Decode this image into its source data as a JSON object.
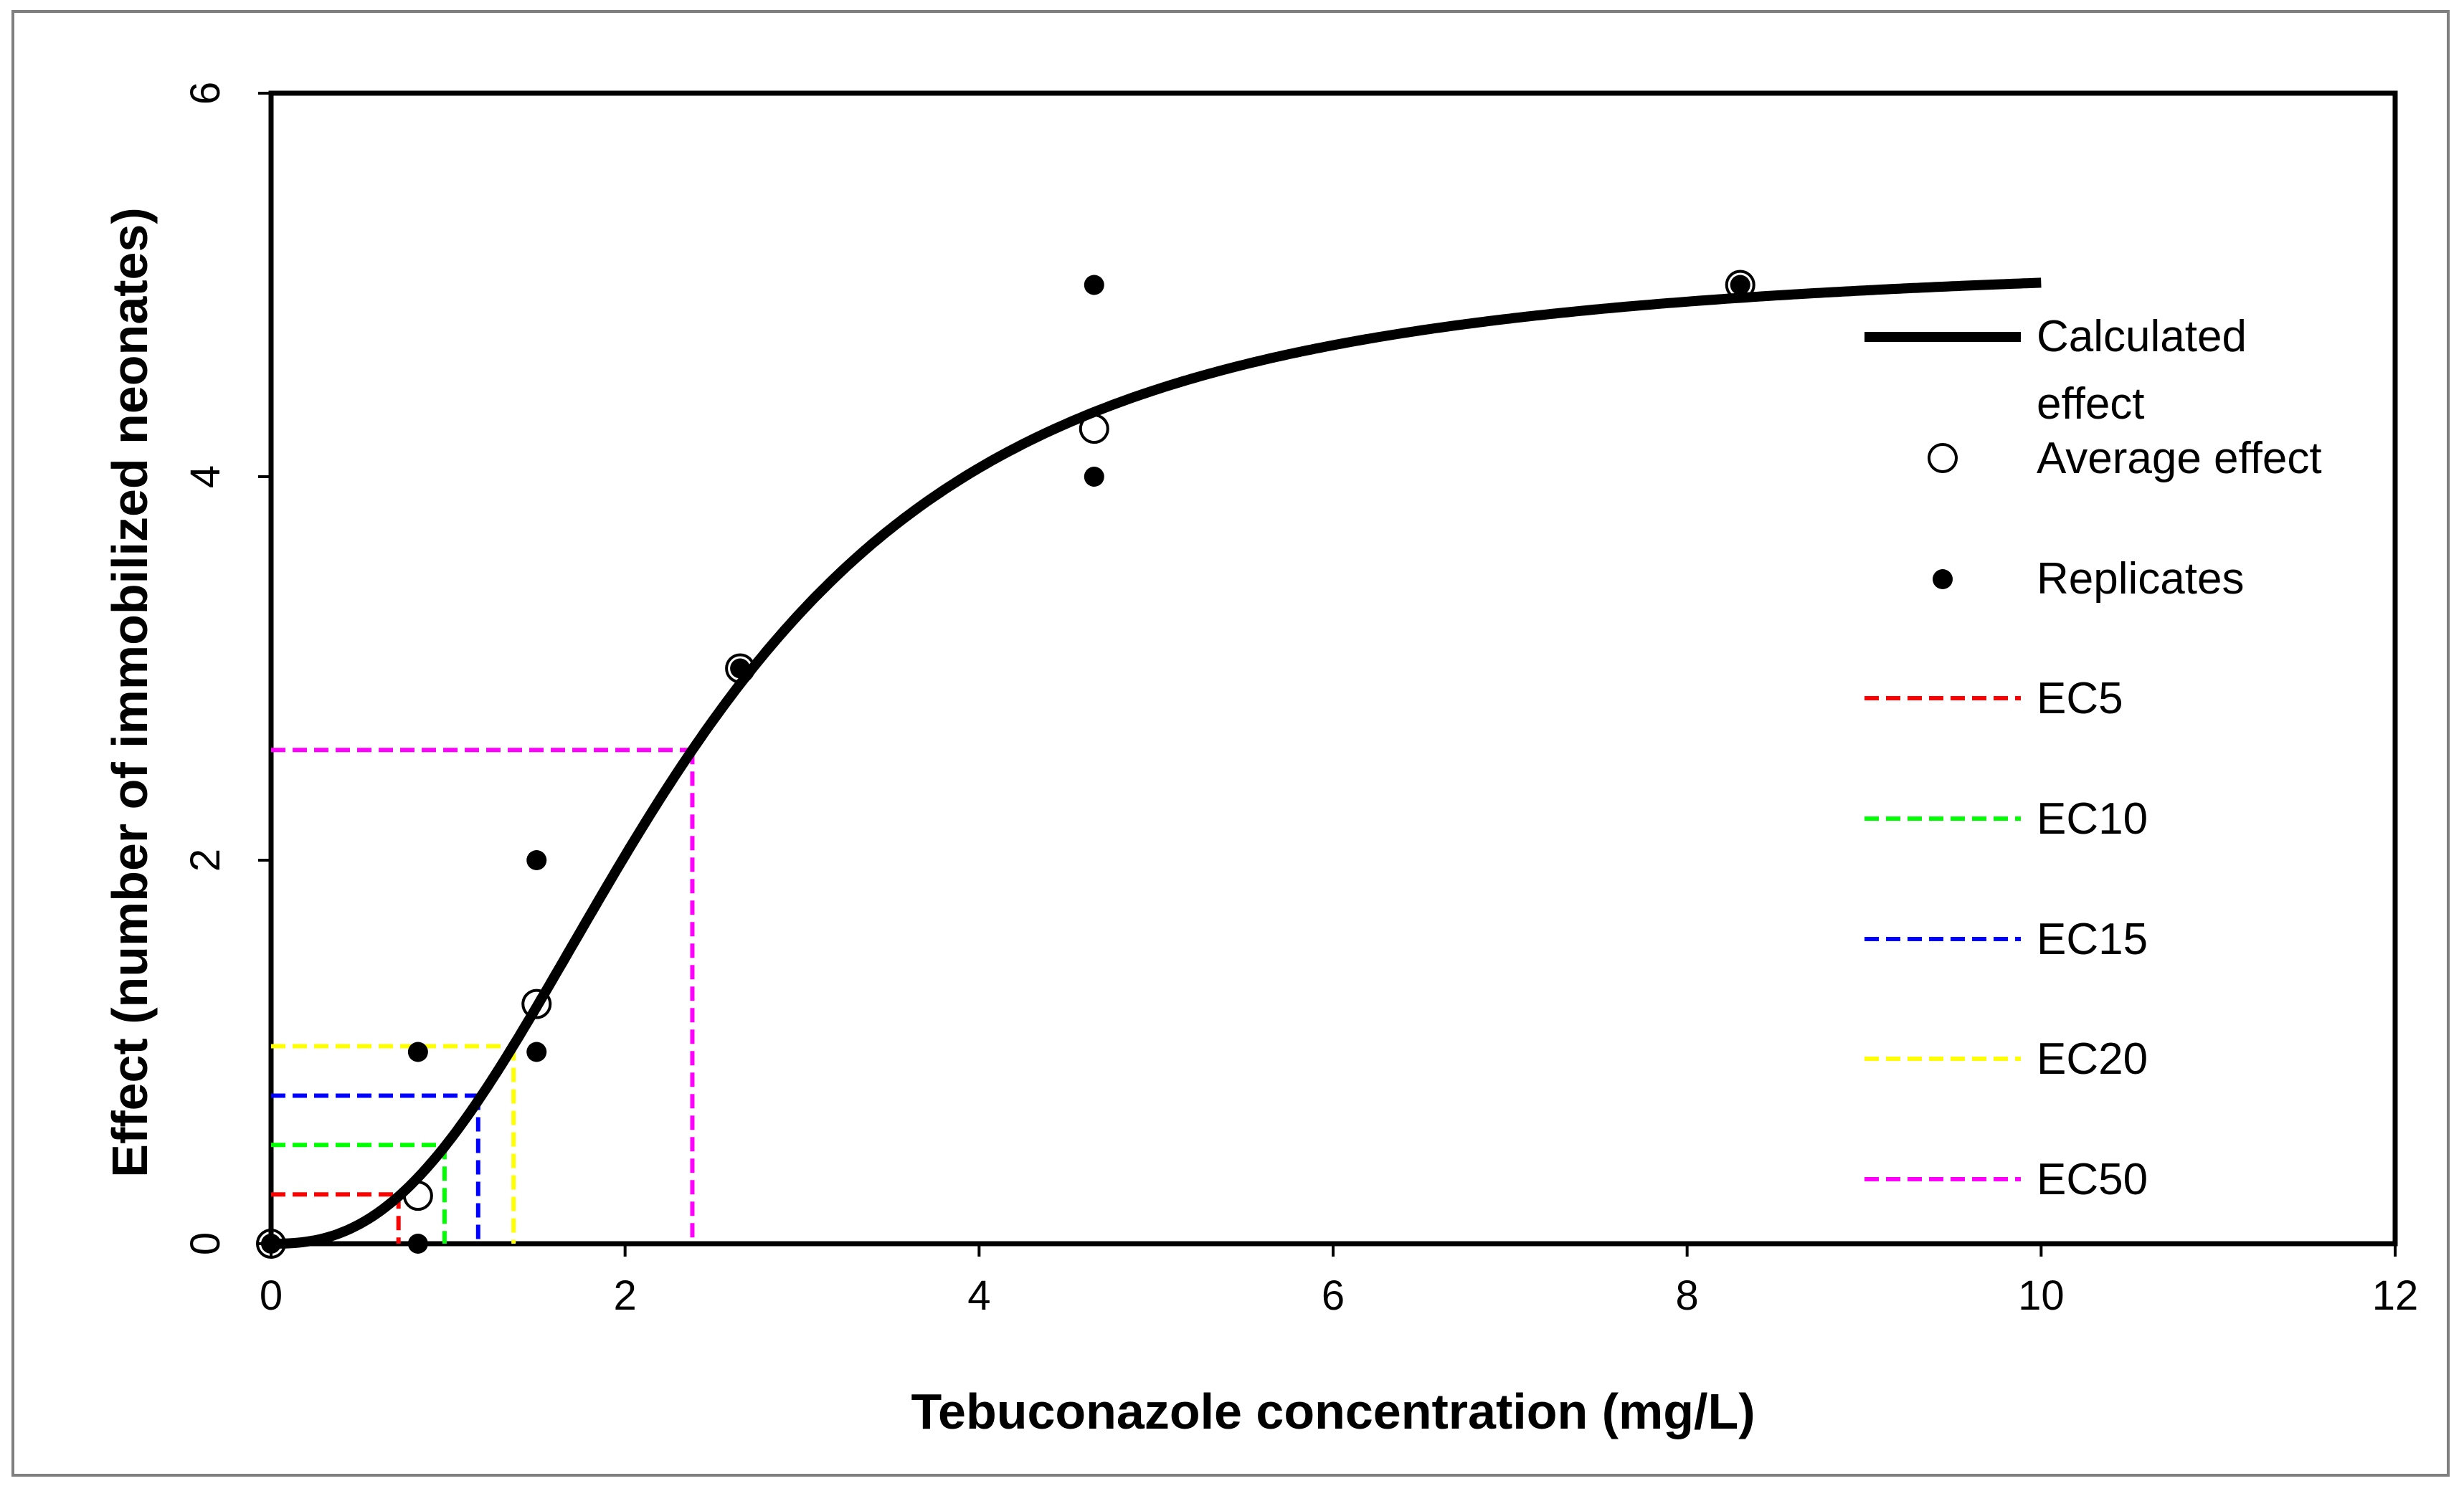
{
  "chart_data": {
    "type": "scatter",
    "xlabel": "Tebuconazole concentration (mg/L)",
    "ylabel": "Effect (number of immobilized neonates)",
    "xlim": [
      0,
      12
    ],
    "ylim": [
      0,
      6
    ],
    "x_ticks": [
      "0",
      "2",
      "4",
      "6",
      "8",
      "10",
      "12"
    ],
    "y_ticks": [
      "0",
      "2",
      "4",
      "6"
    ],
    "grid": false,
    "legend_position": "right",
    "curve": {
      "name": "Calculated effect",
      "model": "log-logistic",
      "top": 5.15,
      "ec50": 2.38,
      "hill": 2.5,
      "x_range": [
        0,
        10
      ],
      "color": "#000000"
    },
    "averages": {
      "name": "Average effect",
      "x": [
        0,
        0.83,
        1.5,
        2.65,
        4.65,
        8.3
      ],
      "y": [
        0,
        0.25,
        1.25,
        3,
        4.25,
        5
      ]
    },
    "replicates": {
      "name": "Replicates",
      "x": [
        0,
        0.83,
        0.83,
        1.5,
        1.5,
        2.65,
        4.65,
        4.65,
        8.3
      ],
      "y": [
        0,
        0,
        1,
        1,
        2,
        3,
        4,
        5,
        5
      ]
    },
    "ec_lines": [
      {
        "name": "EC5",
        "x": 0.72,
        "y": 0.257,
        "color": "#ff0000"
      },
      {
        "name": "EC10",
        "x": 0.98,
        "y": 0.515,
        "color": "#00ff00"
      },
      {
        "name": "EC15",
        "x": 1.17,
        "y": 0.772,
        "color": "#0000ff"
      },
      {
        "name": "EC20",
        "x": 1.37,
        "y": 1.03,
        "color": "#ffff00"
      },
      {
        "name": "EC50",
        "x": 2.38,
        "y": 2.575,
        "color": "#ff00ff"
      }
    ],
    "legend": {
      "calculated_line1": "Calculated",
      "calculated_line2": "effect",
      "average": "Average effect",
      "replicates": "Replicates",
      "ec5": "EC5",
      "ec10": "EC10",
      "ec15": "EC15",
      "ec20": "EC20",
      "ec50": "EC50"
    }
  }
}
